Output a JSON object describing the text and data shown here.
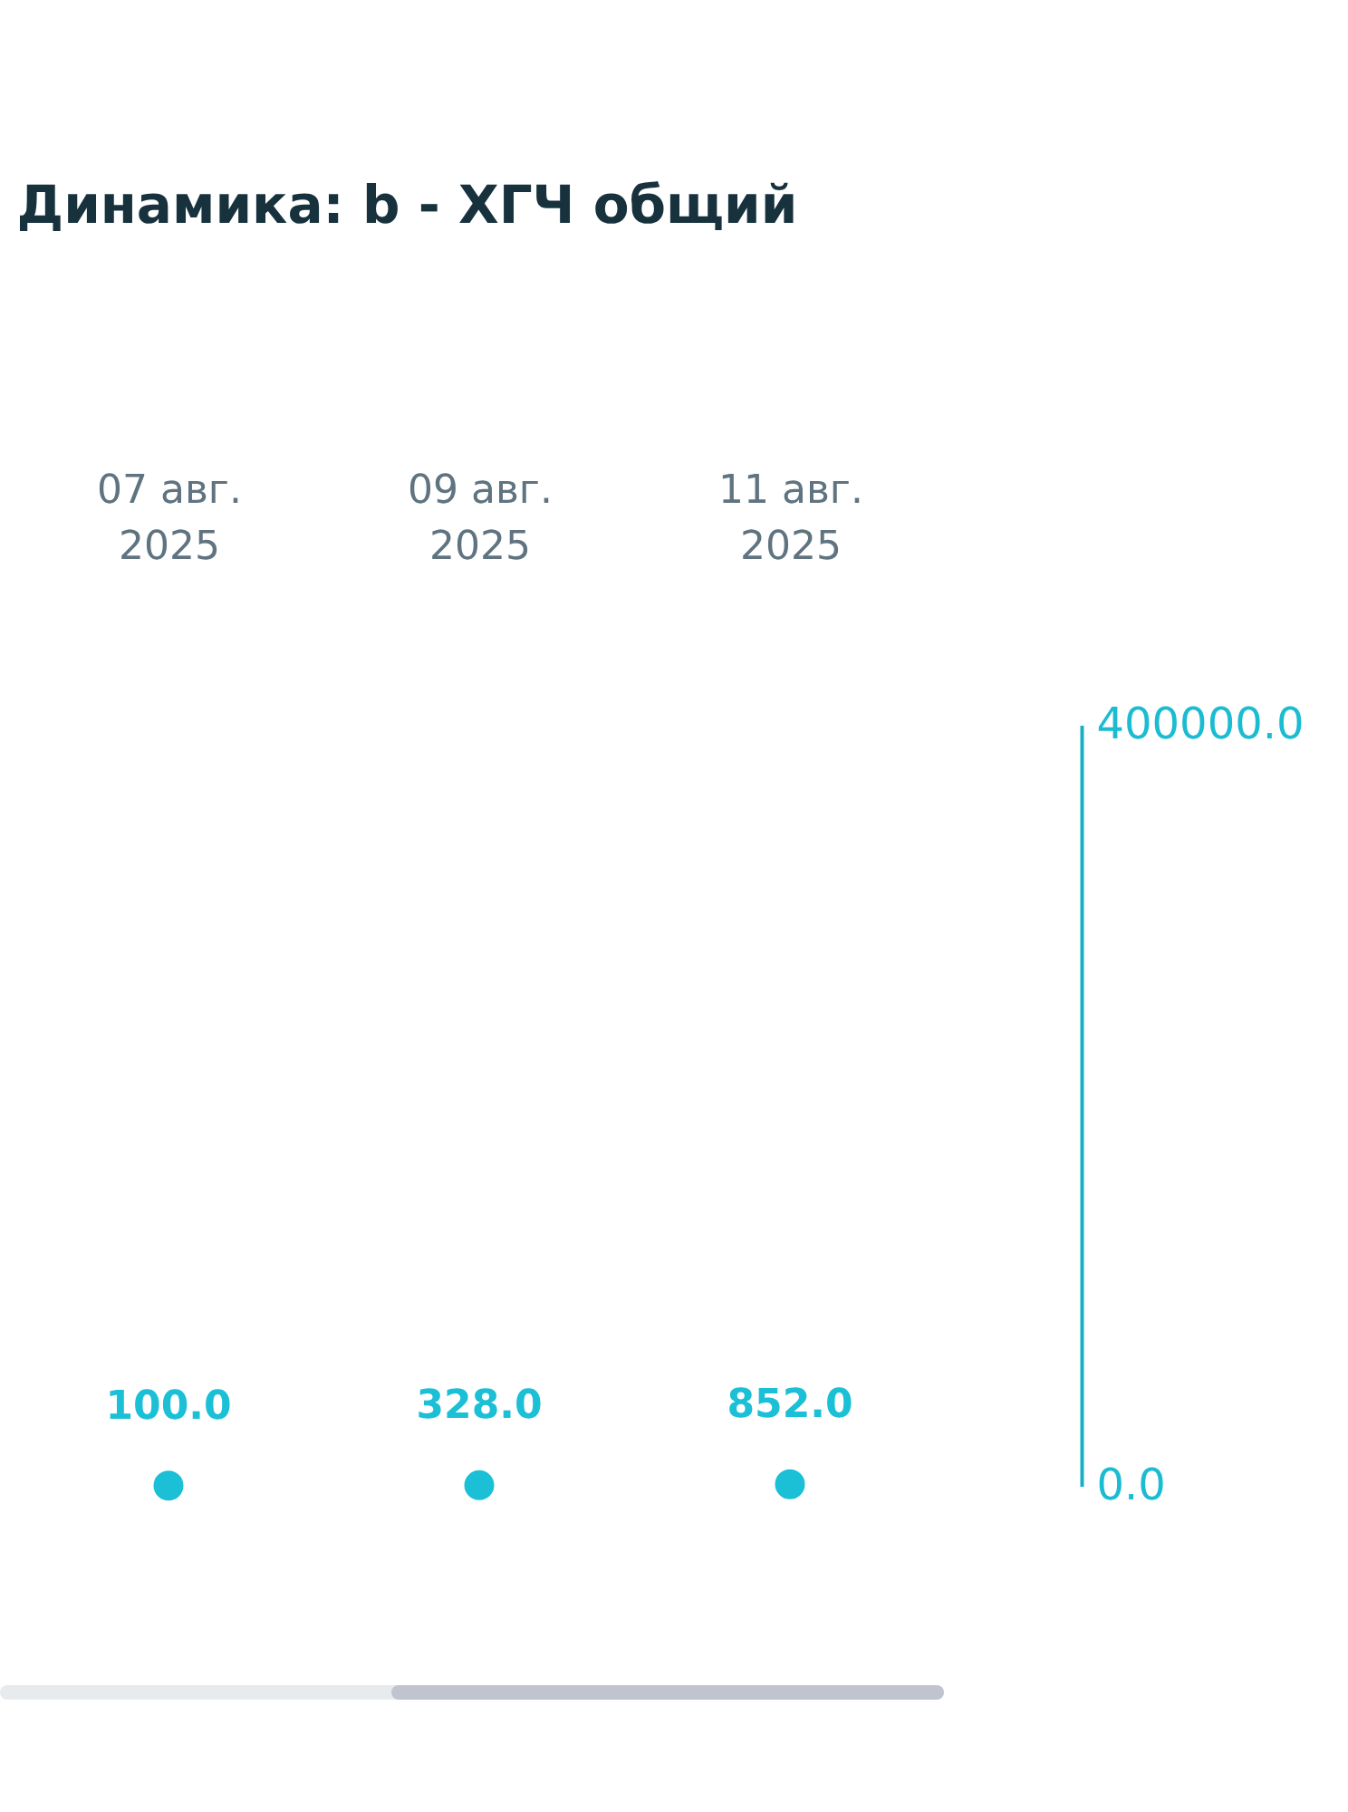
{
  "chart_data": {
    "type": "scatter",
    "title": "Динамика: b - ХГЧ общий",
    "categories": [
      "07 авг. 2025",
      "09 авг. 2025",
      "11 авг. 2025"
    ],
    "series": [
      {
        "color": "#1bbfd6",
        "values": [
          100,
          328,
          852
        ],
        "value_labels": [
          "100.0",
          "328.0",
          "852.0"
        ]
      }
    ],
    "ylim": [
      0,
      400000
    ],
    "yticks": [
      {
        "value": 0,
        "label": "0.0"
      },
      {
        "value": 400000,
        "label": "400000.0"
      }
    ],
    "marker": "circle"
  }
}
